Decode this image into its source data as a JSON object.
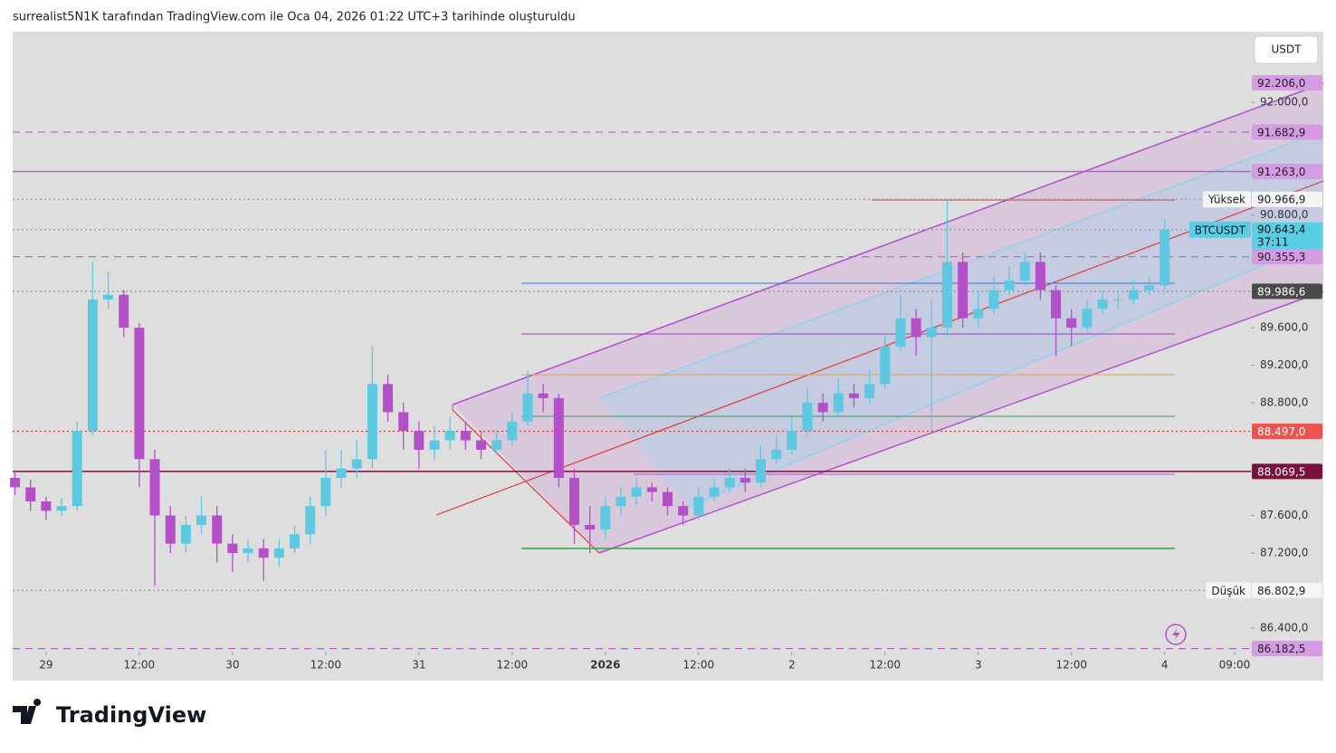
{
  "header": {
    "credit": "surrealist5N1K tarafından TradingView.com ile Oca 04, 2026 01:22 UTC+3 tarihinde oluşturuldu",
    "currency": "USDT",
    "logo": "TradingView"
  },
  "chart_data": {
    "type": "candlestick",
    "up_color": "#5cc8e2",
    "down_color": "#b350c8",
    "x": [
      -4,
      -2,
      0,
      2,
      4,
      6,
      8,
      10,
      12,
      14,
      16,
      18,
      20,
      22,
      24,
      26,
      28,
      30,
      32,
      34,
      36,
      38,
      40,
      42,
      44,
      46,
      48,
      50,
      52,
      54,
      56,
      58,
      60,
      62,
      64,
      66,
      68,
      70,
      72,
      74,
      76,
      78,
      80,
      82,
      84,
      86,
      88,
      90,
      92,
      94,
      96,
      98,
      100,
      102,
      104,
      106,
      108,
      110,
      112,
      114,
      116,
      118,
      120,
      122,
      124,
      126,
      128,
      130,
      132,
      134,
      136,
      138,
      140,
      142,
      144
    ],
    "open": [
      88000,
      87900,
      87750,
      87650,
      87700,
      88500,
      89900,
      89950,
      89600,
      88200,
      87600,
      87300,
      87500,
      87600,
      87300,
      87200,
      87250,
      87150,
      87250,
      87400,
      87700,
      88000,
      88100,
      88200,
      89000,
      88700,
      88500,
      88300,
      88400,
      88500,
      88400,
      88300,
      88400,
      88600,
      88900,
      88850,
      88000,
      87500,
      87450,
      87700,
      87800,
      87900,
      87850,
      87700,
      87600,
      87800,
      87900,
      88000,
      87950,
      88200,
      88300,
      88500,
      88800,
      88700,
      88900,
      88850,
      89000,
      89400,
      89700,
      89500,
      89600,
      90300,
      89700,
      89800,
      90000,
      90100,
      90300,
      90000,
      89700,
      89600,
      89800,
      89900,
      89900,
      90000,
      90050
    ],
    "high": [
      88080,
      87980,
      87800,
      87780,
      88600,
      90300,
      90200,
      90000,
      89650,
      88300,
      87700,
      87600,
      87800,
      87700,
      87400,
      87350,
      87350,
      87350,
      87500,
      87800,
      88300,
      88300,
      88400,
      89400,
      89100,
      88800,
      88600,
      88550,
      88650,
      88600,
      88500,
      88500,
      88700,
      89150,
      89000,
      88900,
      88100,
      87700,
      87800,
      87900,
      88000,
      87950,
      87900,
      87750,
      87900,
      88000,
      88100,
      88100,
      88350,
      88450,
      88650,
      88950,
      88900,
      89050,
      89000,
      89150,
      89550,
      89950,
      89800,
      89900,
      90960,
      90400,
      90000,
      90150,
      90250,
      90400,
      90400,
      90050,
      89800,
      89900,
      90000,
      90000,
      90100,
      90150,
      90750
    ],
    "low": [
      87820,
      87650,
      87550,
      87600,
      87650,
      88450,
      89800,
      89500,
      87900,
      86850,
      87200,
      87200,
      87400,
      87100,
      87000,
      87100,
      86900,
      87050,
      87200,
      87300,
      87600,
      87900,
      88000,
      88100,
      88600,
      88300,
      88100,
      88200,
      88300,
      88300,
      88200,
      88250,
      88350,
      88550,
      88700,
      87900,
      87300,
      87200,
      87350,
      87600,
      87700,
      87750,
      87600,
      87500,
      87550,
      87750,
      87850,
      87850,
      87900,
      88150,
      88250,
      88450,
      88600,
      88650,
      88750,
      88800,
      88950,
      89350,
      89300,
      88500,
      89500,
      89600,
      89600,
      89750,
      89950,
      90050,
      89900,
      89300,
      89400,
      89550,
      89750,
      89800,
      89850,
      89950,
      90000
    ],
    "close": [
      87900,
      87750,
      87650,
      87700,
      88500,
      89900,
      89950,
      89600,
      88200,
      87600,
      87300,
      87500,
      87600,
      87300,
      87200,
      87250,
      87150,
      87250,
      87400,
      87700,
      88000,
      88100,
      88200,
      89000,
      88700,
      88500,
      88300,
      88400,
      88500,
      88400,
      88300,
      88400,
      88600,
      88900,
      88850,
      88000,
      87500,
      87450,
      87700,
      87800,
      87900,
      87850,
      87700,
      87600,
      87800,
      87900,
      88000,
      87950,
      88200,
      88300,
      88500,
      88800,
      88700,
      88900,
      88850,
      89000,
      89400,
      89700,
      89500,
      89600,
      90300,
      89700,
      89800,
      90000,
      90100,
      90300,
      90000,
      89700,
      89600,
      89800,
      89900,
      89900,
      90000,
      90050,
      90643
    ],
    "xlim": [
      -4.3,
      155.1
    ],
    "xticks": [
      {
        "value": 0,
        "label": "29"
      },
      {
        "value": 12,
        "label": "12:00"
      },
      {
        "value": 24,
        "label": "30"
      },
      {
        "value": 36,
        "label": "12:00"
      },
      {
        "value": 48,
        "label": "31"
      },
      {
        "value": 60,
        "label": "12:00"
      },
      {
        "value": 72,
        "label": "2026",
        "bold": true
      },
      {
        "value": 84,
        "label": "12:00"
      },
      {
        "value": 96,
        "label": "2"
      },
      {
        "value": 108,
        "label": "12:00"
      },
      {
        "value": 120,
        "label": "3"
      },
      {
        "value": 132,
        "label": "12:00"
      },
      {
        "value": 144,
        "label": "4"
      },
      {
        "value": 153,
        "label": "09:00"
      }
    ],
    "ylim": [
      86150,
      92752
    ],
    "yticks": [
      {
        "value": 92000,
        "label": "92.000,0"
      },
      {
        "value": 90800,
        "label": "90.800,0"
      },
      {
        "value": 89600,
        "label": "89.600,0"
      },
      {
        "value": 89200,
        "label": "89.200,0"
      },
      {
        "value": 88800,
        "label": "88.800,0"
      },
      {
        "value": 87600,
        "label": "87.600,0"
      },
      {
        "value": 87200,
        "label": "87.200,0"
      },
      {
        "value": 86400,
        "label": "86.400,0"
      }
    ],
    "price_lines": [
      {
        "value": 92206.0,
        "label": "92.206,0",
        "color": "#b85fd0",
        "line": "none",
        "badge": "#d59be3",
        "ink": "#222"
      },
      {
        "value": 91682.9,
        "label": "91.682,9",
        "color": "#b85fd0",
        "line": "dashed",
        "badge": "#d59be3",
        "ink": "#222"
      },
      {
        "value": 91263.0,
        "label": "91.263,0",
        "color": "#b85fd0",
        "line": "solid",
        "badge": "#d59be3",
        "ink": "#222"
      },
      {
        "value": 90966.9,
        "label": "90.966,9",
        "color": "#9a9a9a",
        "line": "dotted",
        "badge": "#f4f4f4",
        "ink": "#222",
        "tag": "Yüksek"
      },
      {
        "value": 90643.4,
        "label": "90.643,4",
        "color": "#9a9a9a",
        "line": "dotted",
        "badge": "#58cfe6",
        "ink": "#111",
        "tag": "BTCUSDT",
        "countdown": "37:11"
      },
      {
        "value": 90355.3,
        "label": "90.355,3",
        "color": "#b85fd0",
        "line": "dashed",
        "badge": "#d59be3",
        "ink": "#222"
      },
      {
        "value": 89986.6,
        "label": "89.986,6",
        "color": "#8a8a8a",
        "line": "dotted",
        "badge": "#4a4a4a",
        "ink": "#fff"
      },
      {
        "value": 88497.0,
        "label": "88.497,0",
        "color": "#e53935",
        "line": "dotted",
        "badge": "#ef5350",
        "ink": "#fff"
      },
      {
        "value": 88069.5,
        "label": "88.069,5",
        "color": "#7a1040",
        "line": "solid",
        "badge": "#7a1040",
        "ink": "#fff"
      },
      {
        "value": 86802.9,
        "label": "86.802,9",
        "color": "#9a9a9a",
        "line": "dotted",
        "badge": "#f4f4f4",
        "ink": "#222",
        "tag": "Düşük"
      },
      {
        "value": 86182.5,
        "label": "86.182,5",
        "color": "#b85fd0",
        "line": "dashed",
        "badge": "#d59be3",
        "ink": "#222"
      }
    ]
  }
}
